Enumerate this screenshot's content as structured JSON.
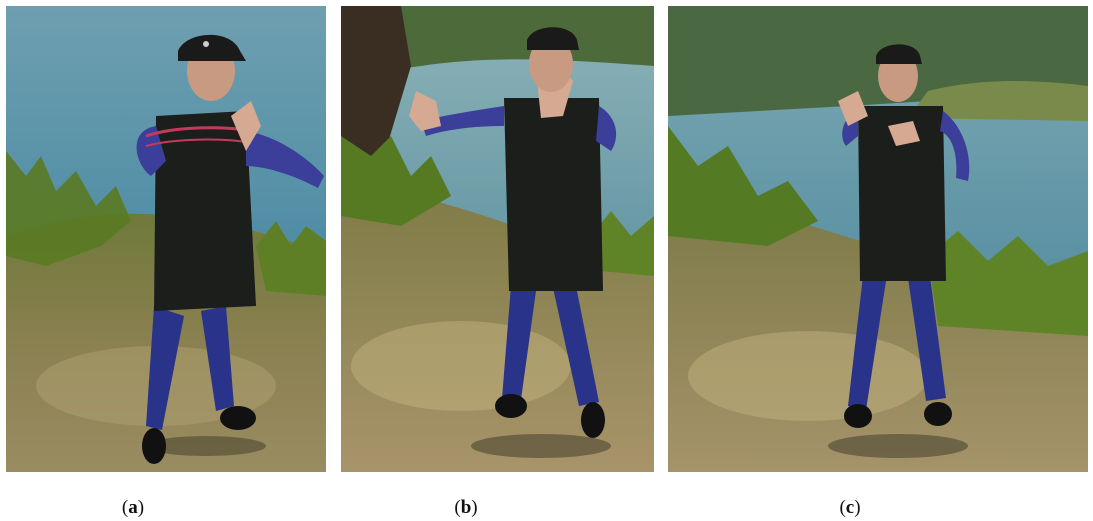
{
  "figure": {
    "panels": [
      {
        "id": "a",
        "caption_open": "(",
        "caption_letter": "a",
        "caption_close": ")"
      },
      {
        "id": "b",
        "caption_open": "(",
        "caption_letter": "b",
        "caption_close": ")"
      },
      {
        "id": "c",
        "caption_open": "(",
        "caption_letter": "c",
        "caption_close": ")"
      }
    ]
  },
  "colors": {
    "water": "#4f8fa8",
    "grass": "#5f7d2a",
    "ground": "#8a8050",
    "vest": "#1c1e1c",
    "sleeve": "#3b3f9a",
    "pants": "#2a338a",
    "skin": "#c89a82",
    "cap": "#1a1a1a"
  }
}
